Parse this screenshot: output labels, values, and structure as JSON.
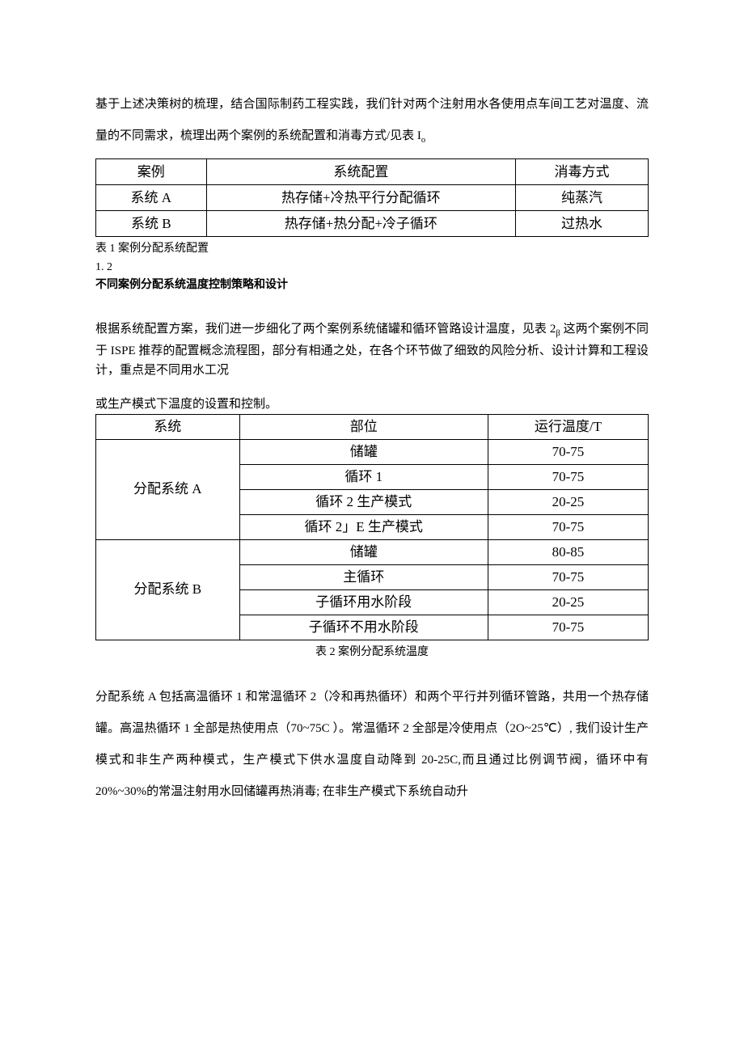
{
  "intro": "基于上述决策树的梳理，结合国际制药工程实践，我们针对两个注射用水各使用点车间工艺对温度、流量的不同需求，梳理出两个案例的系统配置和消毒方式/见表 I",
  "intro_sub": "o",
  "table1": {
    "headers": [
      "案例",
      "系统配置",
      "消毒方式"
    ],
    "rows": [
      [
        "系统 A",
        "热存储+冷热平行分配循环",
        "纯蒸汽"
      ],
      [
        "系统 B",
        "热存储+热分配+冷子循环",
        "过热水"
      ]
    ],
    "caption": "表 1 案例分配系统配置"
  },
  "section": {
    "num": "1. 2",
    "title": "不同案例分配系统温度控制策略和设计"
  },
  "para2a": "根据系统配置方案，我们进一步细化了两个案例系统储罐和循环管路设计温度，见表 2",
  "para2a_sub": "β",
  "para2b": " 这两个案例不同于 ISPE 推荐的配置概念流程图，部分有相通之处，在各个环节做了细致的风险分析、设计计算和工程设计，重点是不同用水工况",
  "para2c": "或生产模式下温度的设置和控制。",
  "table2": {
    "headers": [
      "系统",
      "部位",
      "运行温度/T"
    ],
    "groupA": {
      "name": "分配系统 A",
      "rows": [
        [
          "储罐",
          "70-75"
        ],
        [
          "循环 1",
          "70-75"
        ],
        [
          "循环 2 生产模式",
          "20-25"
        ],
        [
          "循环 2」E 生产模式",
          "70-75"
        ]
      ]
    },
    "groupB": {
      "name": "分配系统 B",
      "rows": [
        [
          "储罐",
          "80-85"
        ],
        [
          "主循环",
          "70-75"
        ],
        [
          "子循环用水阶段",
          "20-25"
        ],
        [
          "子循环不用水阶段",
          "70-75"
        ]
      ]
    },
    "caption": "表 2 案例分配系统温度"
  },
  "para3": "分配系统 A 包括高温循环 1 和常温循环 2（冷和再热循环）和两个平行并列循环管路，共用一个热存储罐。高温热循环 1 全部是热使用点（70~75C ）。常温循环 2 全部是冷使用点（2O~25℃）, 我们设计生产模式和非生产两种模式，生产模式下供水温度自动降到 20-25C,而且通过比例调节阀，循环中有 20%~30%的常温注射用水回储罐再热消毒; 在非生产模式下系统自动升"
}
